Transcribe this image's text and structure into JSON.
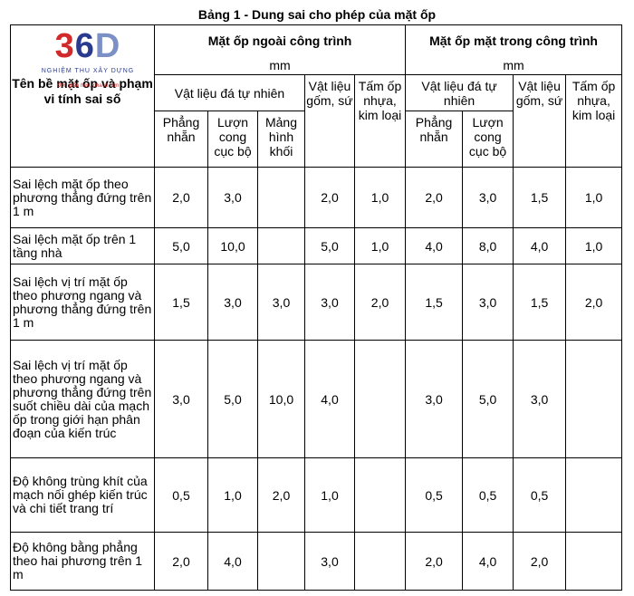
{
  "title": "Bảng 1 - Dung sai cho phép của mặt ốp",
  "logo": {
    "mark3": "3",
    "mark6": "6",
    "mark0": "D",
    "subtitle": "NGHIỆM THU XÂY DỰNG",
    "tagline": "Đơn giản hơn, nhanh hơn"
  },
  "header": {
    "corner": "Tên bề mặt ốp và phạm vi tính sai số",
    "outside": "Mặt ốp ngoài công trình",
    "inside": "Mặt ốp mặt trong công trình",
    "unit_outside": "mm",
    "unit_inside": "mm",
    "natural_stone_out": "Vật liệu đá tự nhiên",
    "natural_stone_in": "Vật liệu đá tự nhiên",
    "ceramic_out": "Vật liệu gốm, sứ",
    "ceramic_in": "Vật liệu gốm, sứ",
    "plastic_out": "Tấm ốp nhựa, kim loại",
    "plastic_in": "Tấm ốp nhựa, kim loại",
    "flat_out": "Phẳng nhẵn",
    "curved_out": "Lượn cong cục bộ",
    "block_out": "Mảng hình khối",
    "flat_in": "Phẳng nhẵn",
    "curved_in": "Lượn cong cục bộ"
  },
  "rows": [
    {
      "desc": "Sai lệch mặt ốp theo phương thẳng đứng trên 1 m",
      "v": [
        "2,0",
        "3,0",
        "",
        "2,0",
        "1,0",
        "2,0",
        "3,0",
        "1,5",
        "1,0"
      ]
    },
    {
      "desc": "Sai lệch mặt ốp trên 1 tầng nhà",
      "v": [
        "5,0",
        "10,0",
        "",
        "5,0",
        "1,0",
        "4,0",
        "8,0",
        "4,0",
        "1,0"
      ]
    },
    {
      "desc": "Sai lệch vị trí mặt ốp theo phương ngang và phương thẳng đứng trên 1 m",
      "v": [
        "1,5",
        "3,0",
        "3,0",
        "3,0",
        "2,0",
        "1,5",
        "3,0",
        "1,5",
        "2,0"
      ]
    },
    {
      "desc": "Sai lệch vị trí mặt ốp theo phương ngang và phương thẳng đứng trên suốt chiều dài của mạch ốp trong giới hạn phân đoạn của kiến trúc",
      "v": [
        "3,0",
        "5,0",
        "10,0",
        "4,0",
        "",
        "3,0",
        "5,0",
        "3,0",
        ""
      ]
    },
    {
      "desc": "Độ không trùng khít của mạch nối ghép kiến trúc và chi tiết trang trí",
      "v": [
        "0,5",
        "1,0",
        "2,0",
        "1,0",
        "",
        "0,5",
        "0,5",
        "0,5",
        ""
      ]
    },
    {
      "desc": "Độ không bằng phẳng theo hai phương trên 1 m",
      "v": [
        "2,0",
        "4,0",
        "",
        "3,0",
        "",
        "2,0",
        "4,0",
        "2,0",
        ""
      ]
    }
  ]
}
